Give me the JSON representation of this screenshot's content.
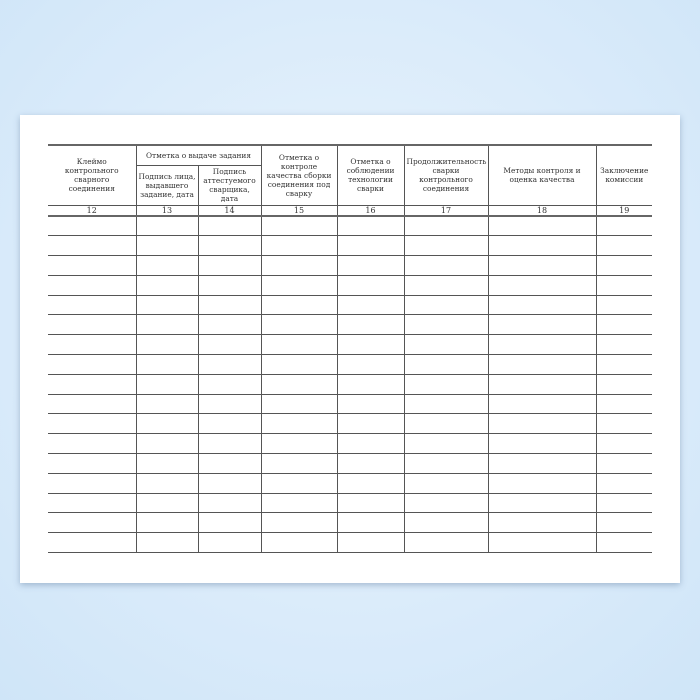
{
  "header": {
    "col12": "Клеймо контрольного сварного соединения",
    "group13_14": "Отметка о выдаче задания",
    "col13": "Подпись лица, выдавшего задание, дата",
    "col14": "Подпись аттестуемого сварщика, дата",
    "col15": "Отметка о контроле качества сборки соединения под сварку",
    "col16": "Отметка о соблюдении технологии сварки",
    "col17": "Продолжительность сварки контрольного соединения",
    "col18": "Методы контроля и оценка качества",
    "col19": "Заключение комиссии"
  },
  "column_numbers": [
    "12",
    "13",
    "14",
    "15",
    "16",
    "17",
    "18",
    "19"
  ],
  "empty_rows": 17
}
